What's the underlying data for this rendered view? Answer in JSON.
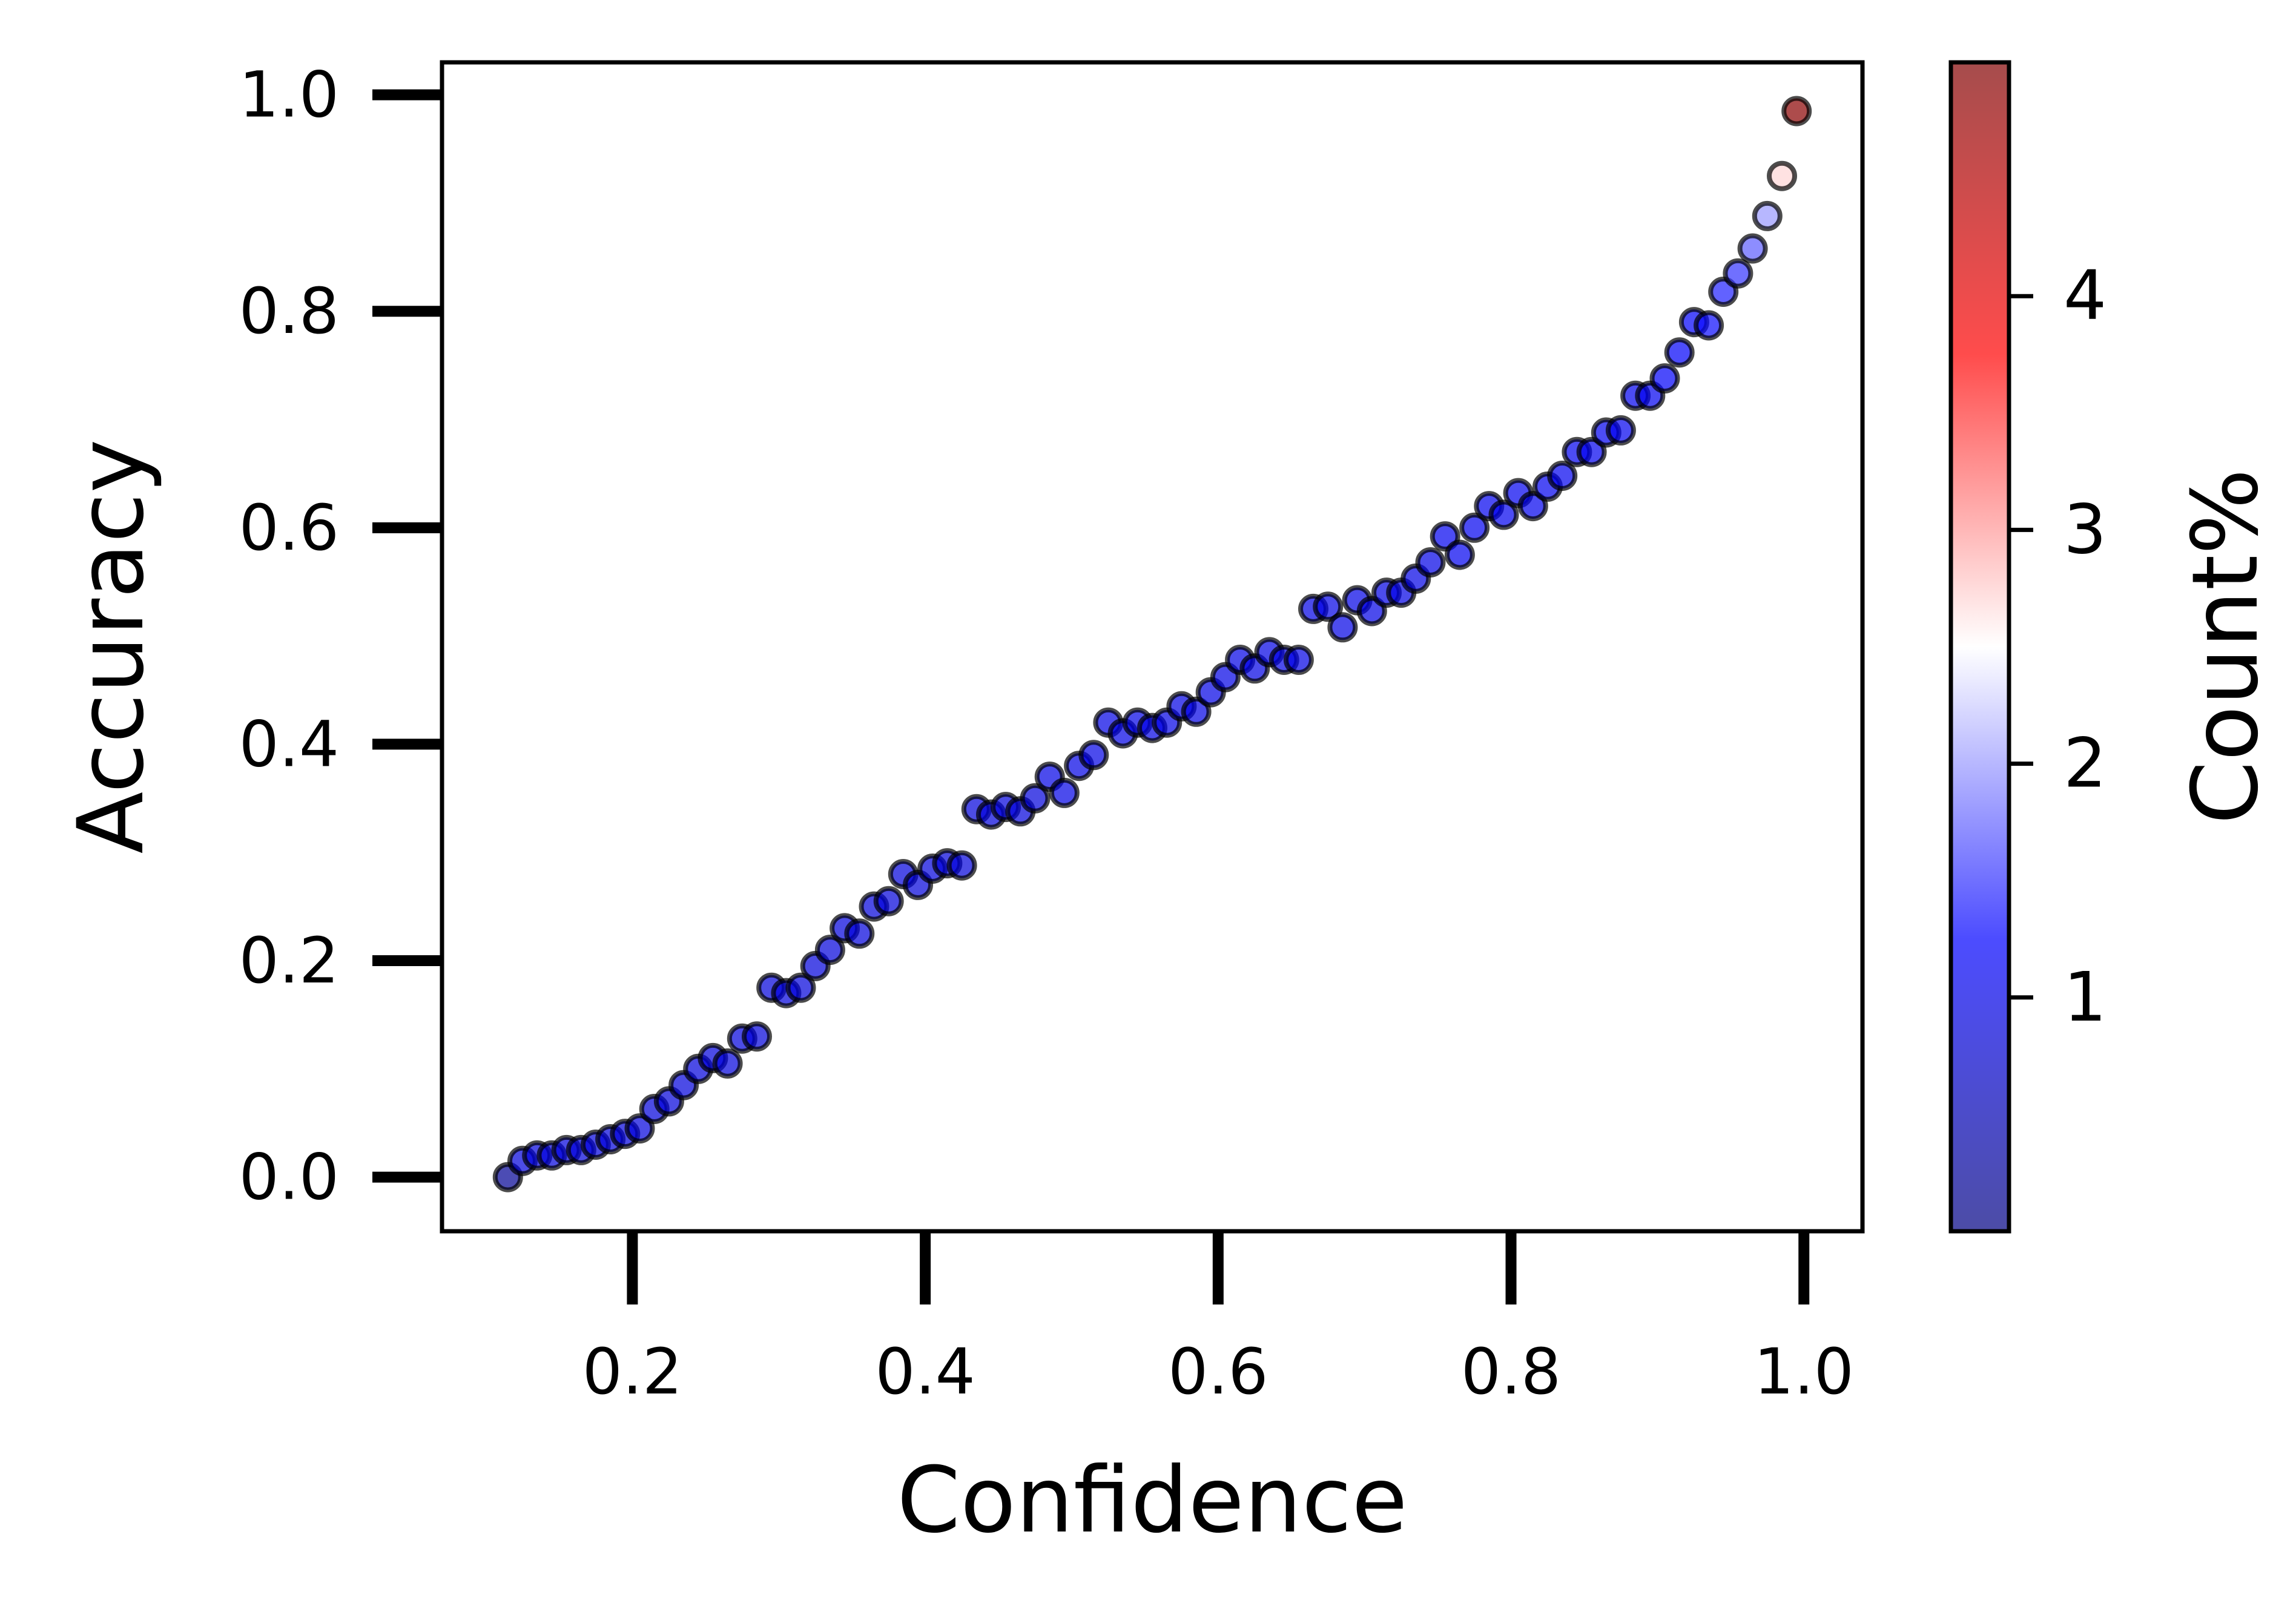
{
  "chart_data": {
    "type": "scatter",
    "xlabel": "Confidence",
    "ylabel": "Accuracy",
    "xlim": [
      0.07,
      1.04
    ],
    "ylim": [
      -0.05,
      1.03
    ],
    "xticks": [
      "0.2",
      "0.4",
      "0.6",
      "0.8",
      "1.0"
    ],
    "yticks": [
      "0.0",
      "0.2",
      "0.4",
      "0.6",
      "0.8",
      "1.0"
    ],
    "colorbar": {
      "label": "Count%",
      "cmap": "bwr",
      "range": [
        0,
        5
      ],
      "ticks": [
        "1",
        "2",
        "3",
        "4"
      ]
    },
    "marker_edge_color": "#000000",
    "points": [
      {
        "x": 0.115,
        "y": 0.0,
        "c": 0.2
      },
      {
        "x": 0.125,
        "y": 0.015,
        "c": 0.9
      },
      {
        "x": 0.135,
        "y": 0.02,
        "c": 0.9
      },
      {
        "x": 0.145,
        "y": 0.02,
        "c": 0.9
      },
      {
        "x": 0.155,
        "y": 0.025,
        "c": 0.9
      },
      {
        "x": 0.165,
        "y": 0.025,
        "c": 0.9
      },
      {
        "x": 0.175,
        "y": 0.03,
        "c": 0.9
      },
      {
        "x": 0.185,
        "y": 0.035,
        "c": 0.9
      },
      {
        "x": 0.195,
        "y": 0.04,
        "c": 0.9
      },
      {
        "x": 0.205,
        "y": 0.045,
        "c": 0.9
      },
      {
        "x": 0.215,
        "y": 0.063,
        "c": 0.9
      },
      {
        "x": 0.225,
        "y": 0.07,
        "c": 0.9
      },
      {
        "x": 0.235,
        "y": 0.085,
        "c": 0.9
      },
      {
        "x": 0.245,
        "y": 0.1,
        "c": 0.9
      },
      {
        "x": 0.255,
        "y": 0.11,
        "c": 0.9
      },
      {
        "x": 0.265,
        "y": 0.105,
        "c": 0.9
      },
      {
        "x": 0.275,
        "y": 0.128,
        "c": 0.9
      },
      {
        "x": 0.285,
        "y": 0.13,
        "c": 0.9
      },
      {
        "x": 0.295,
        "y": 0.175,
        "c": 0.9
      },
      {
        "x": 0.305,
        "y": 0.17,
        "c": 0.9
      },
      {
        "x": 0.315,
        "y": 0.175,
        "c": 0.9
      },
      {
        "x": 0.325,
        "y": 0.195,
        "c": 0.9
      },
      {
        "x": 0.335,
        "y": 0.21,
        "c": 0.9
      },
      {
        "x": 0.345,
        "y": 0.23,
        "c": 0.9
      },
      {
        "x": 0.355,
        "y": 0.225,
        "c": 0.9
      },
      {
        "x": 0.365,
        "y": 0.25,
        "c": 0.9
      },
      {
        "x": 0.375,
        "y": 0.255,
        "c": 0.9
      },
      {
        "x": 0.385,
        "y": 0.28,
        "c": 0.9
      },
      {
        "x": 0.395,
        "y": 0.27,
        "c": 0.9
      },
      {
        "x": 0.405,
        "y": 0.285,
        "c": 0.9
      },
      {
        "x": 0.415,
        "y": 0.29,
        "c": 0.9
      },
      {
        "x": 0.425,
        "y": 0.288,
        "c": 0.9
      },
      {
        "x": 0.435,
        "y": 0.34,
        "c": 0.9
      },
      {
        "x": 0.445,
        "y": 0.335,
        "c": 0.9
      },
      {
        "x": 0.455,
        "y": 0.342,
        "c": 0.9
      },
      {
        "x": 0.465,
        "y": 0.338,
        "c": 0.9
      },
      {
        "x": 0.475,
        "y": 0.35,
        "c": 0.9
      },
      {
        "x": 0.485,
        "y": 0.37,
        "c": 1.0
      },
      {
        "x": 0.495,
        "y": 0.355,
        "c": 1.0
      },
      {
        "x": 0.505,
        "y": 0.38,
        "c": 1.0
      },
      {
        "x": 0.515,
        "y": 0.39,
        "c": 1.0
      },
      {
        "x": 0.525,
        "y": 0.42,
        "c": 1.0
      },
      {
        "x": 0.535,
        "y": 0.41,
        "c": 1.0
      },
      {
        "x": 0.545,
        "y": 0.42,
        "c": 1.0
      },
      {
        "x": 0.555,
        "y": 0.415,
        "c": 1.0
      },
      {
        "x": 0.565,
        "y": 0.42,
        "c": 1.0
      },
      {
        "x": 0.575,
        "y": 0.435,
        "c": 1.0
      },
      {
        "x": 0.585,
        "y": 0.43,
        "c": 1.0
      },
      {
        "x": 0.595,
        "y": 0.448,
        "c": 1.0
      },
      {
        "x": 0.605,
        "y": 0.462,
        "c": 1.0
      },
      {
        "x": 0.615,
        "y": 0.478,
        "c": 1.0
      },
      {
        "x": 0.625,
        "y": 0.47,
        "c": 1.0
      },
      {
        "x": 0.635,
        "y": 0.485,
        "c": 1.0
      },
      {
        "x": 0.645,
        "y": 0.478,
        "c": 1.0
      },
      {
        "x": 0.655,
        "y": 0.478,
        "c": 1.0
      },
      {
        "x": 0.665,
        "y": 0.525,
        "c": 1.0
      },
      {
        "x": 0.675,
        "y": 0.527,
        "c": 1.0
      },
      {
        "x": 0.685,
        "y": 0.508,
        "c": 1.0
      },
      {
        "x": 0.695,
        "y": 0.533,
        "c": 1.0
      },
      {
        "x": 0.705,
        "y": 0.523,
        "c": 1.0
      },
      {
        "x": 0.715,
        "y": 0.54,
        "c": 1.0
      },
      {
        "x": 0.725,
        "y": 0.54,
        "c": 1.0
      },
      {
        "x": 0.735,
        "y": 0.553,
        "c": 1.0
      },
      {
        "x": 0.745,
        "y": 0.568,
        "c": 1.0
      },
      {
        "x": 0.755,
        "y": 0.592,
        "c": 1.1
      },
      {
        "x": 0.765,
        "y": 0.575,
        "c": 1.1
      },
      {
        "x": 0.775,
        "y": 0.6,
        "c": 1.1
      },
      {
        "x": 0.785,
        "y": 0.62,
        "c": 1.1
      },
      {
        "x": 0.795,
        "y": 0.612,
        "c": 1.1
      },
      {
        "x": 0.805,
        "y": 0.632,
        "c": 1.1
      },
      {
        "x": 0.815,
        "y": 0.62,
        "c": 1.1
      },
      {
        "x": 0.825,
        "y": 0.638,
        "c": 1.1
      },
      {
        "x": 0.835,
        "y": 0.648,
        "c": 1.1
      },
      {
        "x": 0.845,
        "y": 0.67,
        "c": 1.1
      },
      {
        "x": 0.855,
        "y": 0.67,
        "c": 1.1
      },
      {
        "x": 0.865,
        "y": 0.688,
        "c": 1.1
      },
      {
        "x": 0.875,
        "y": 0.69,
        "c": 1.1
      },
      {
        "x": 0.885,
        "y": 0.722,
        "c": 1.1
      },
      {
        "x": 0.895,
        "y": 0.722,
        "c": 1.1
      },
      {
        "x": 0.905,
        "y": 0.738,
        "c": 1.2
      },
      {
        "x": 0.915,
        "y": 0.762,
        "c": 1.2
      },
      {
        "x": 0.925,
        "y": 0.79,
        "c": 1.2
      },
      {
        "x": 0.935,
        "y": 0.787,
        "c": 1.3
      },
      {
        "x": 0.945,
        "y": 0.818,
        "c": 1.4
      },
      {
        "x": 0.955,
        "y": 0.835,
        "c": 1.5
      },
      {
        "x": 0.965,
        "y": 0.858,
        "c": 1.7
      },
      {
        "x": 0.975,
        "y": 0.888,
        "c": 2.0
      },
      {
        "x": 0.985,
        "y": 0.925,
        "c": 2.7
      },
      {
        "x": 0.995,
        "y": 0.985,
        "c": 4.9
      }
    ]
  }
}
